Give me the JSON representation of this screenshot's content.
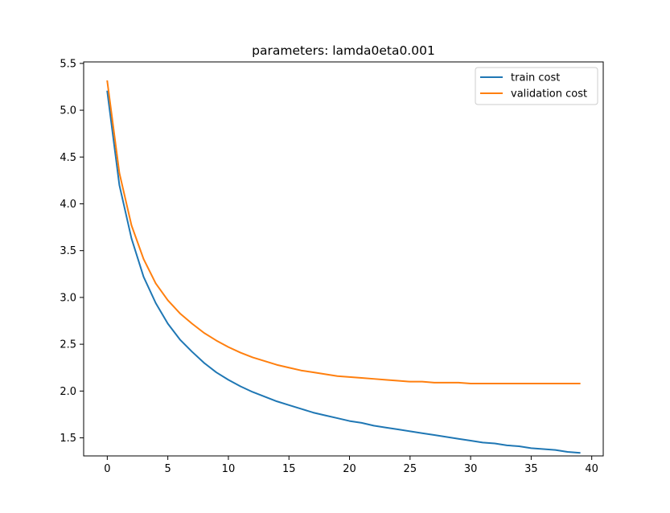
{
  "chart_data": {
    "type": "line",
    "title": "parameters: lamda0eta0.001",
    "xlabel": "",
    "ylabel": "",
    "xlim": [
      -1.95,
      40.95
    ],
    "ylim": [
      1.307,
      5.516
    ],
    "xticks": [
      0,
      5,
      10,
      15,
      20,
      25,
      30,
      35,
      40
    ],
    "yticks": [
      1.5,
      2.0,
      2.5,
      3.0,
      3.5,
      4.0,
      4.5,
      5.0,
      5.5
    ],
    "xtick_labels": [
      "0",
      "5",
      "10",
      "15",
      "20",
      "25",
      "30",
      "35",
      "40"
    ],
    "ytick_labels": [
      "1.5",
      "2.0",
      "2.5",
      "3.0",
      "3.5",
      "4.0",
      "4.5",
      "5.0",
      "5.5"
    ],
    "grid": false,
    "legend_position": "top-right",
    "x": [
      0,
      1,
      2,
      3,
      4,
      5,
      6,
      7,
      8,
      9,
      10,
      11,
      12,
      13,
      14,
      15,
      16,
      17,
      18,
      19,
      20,
      21,
      22,
      23,
      24,
      25,
      26,
      27,
      28,
      29,
      30,
      31,
      32,
      33,
      34,
      35,
      36,
      37,
      38,
      39
    ],
    "series": [
      {
        "name": "train cost",
        "color": "#1f77b4",
        "values": [
          5.2,
          4.2,
          3.63,
          3.22,
          2.94,
          2.72,
          2.55,
          2.42,
          2.3,
          2.2,
          2.12,
          2.05,
          1.99,
          1.94,
          1.89,
          1.85,
          1.81,
          1.77,
          1.74,
          1.71,
          1.68,
          1.66,
          1.63,
          1.61,
          1.59,
          1.57,
          1.55,
          1.53,
          1.51,
          1.49,
          1.47,
          1.45,
          1.44,
          1.42,
          1.41,
          1.39,
          1.38,
          1.37,
          1.35,
          1.34
        ]
      },
      {
        "name": "validation cost",
        "color": "#ff7f0e",
        "values": [
          5.31,
          4.33,
          3.77,
          3.41,
          3.15,
          2.97,
          2.83,
          2.72,
          2.62,
          2.54,
          2.47,
          2.41,
          2.36,
          2.32,
          2.28,
          2.25,
          2.22,
          2.2,
          2.18,
          2.16,
          2.15,
          2.14,
          2.13,
          2.12,
          2.11,
          2.1,
          2.1,
          2.09,
          2.09,
          2.09,
          2.08,
          2.08,
          2.08,
          2.08,
          2.08,
          2.08,
          2.08,
          2.08,
          2.08,
          2.08
        ]
      }
    ]
  }
}
